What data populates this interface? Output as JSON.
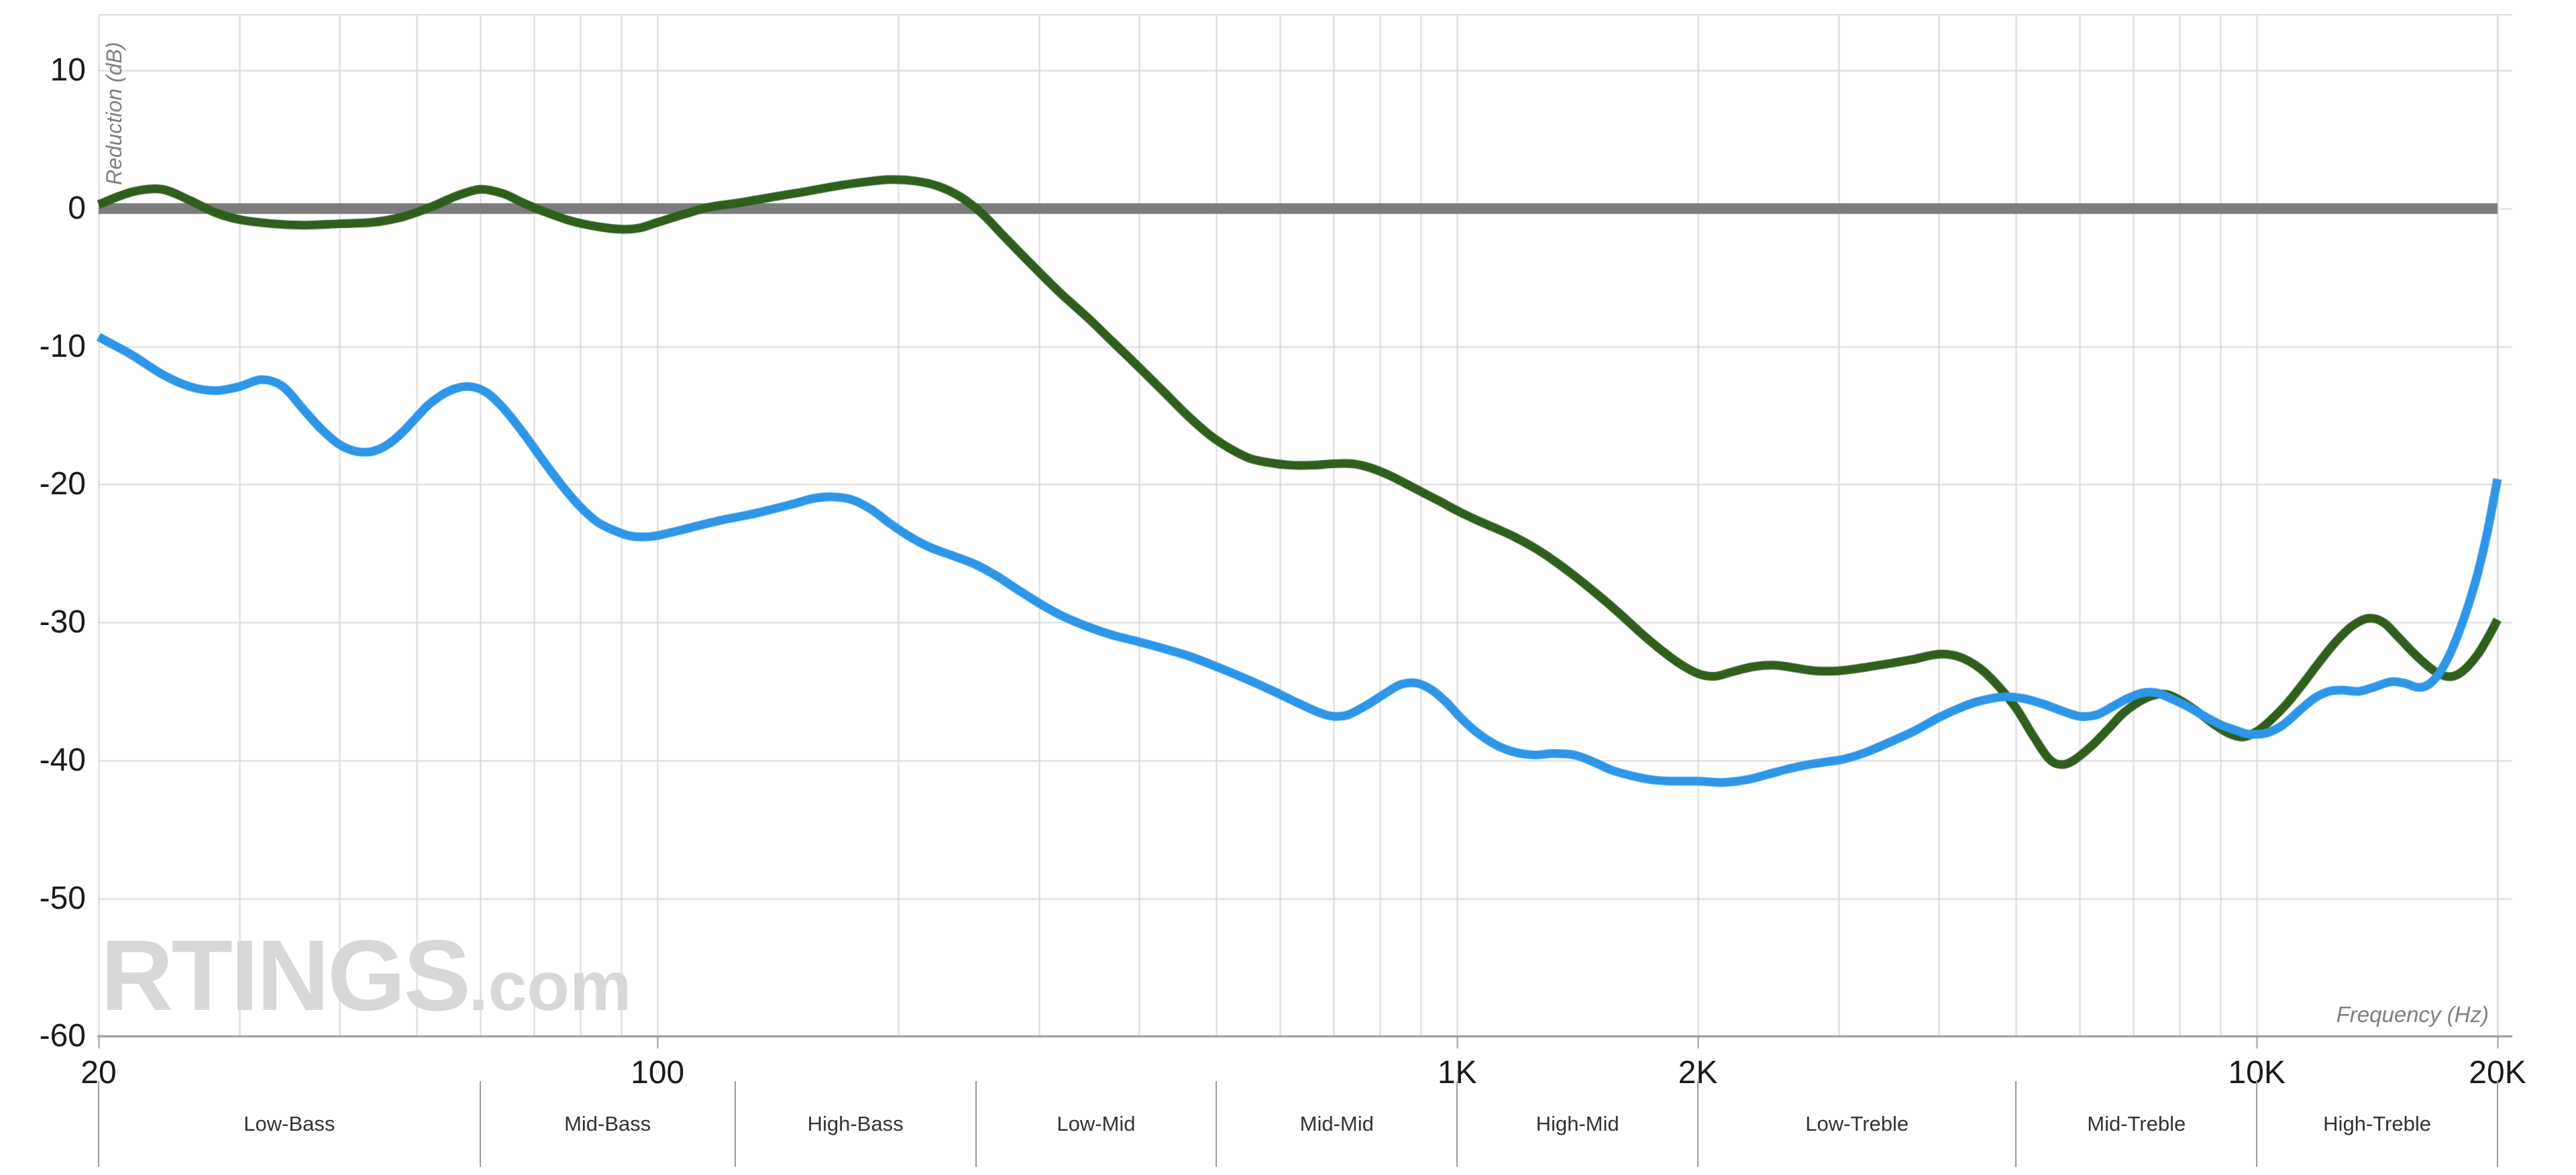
{
  "chart_data": {
    "type": "line",
    "title": "",
    "xlabel": "Frequency (Hz)",
    "ylabel": "Reduction (dB)",
    "x_scale": "log",
    "xlim": [
      20,
      20000
    ],
    "ylim": [
      -60,
      14
    ],
    "grid": {
      "color": "#d8d8d8",
      "axis_color": "#999999",
      "on": true
    },
    "y_ticks": [
      {
        "v": 10,
        "label": "10"
      },
      {
        "v": 0,
        "label": "0"
      },
      {
        "v": -10,
        "label": "-10"
      },
      {
        "v": -20,
        "label": "-20"
      },
      {
        "v": -30,
        "label": "-30"
      },
      {
        "v": -40,
        "label": "-40"
      },
      {
        "v": -50,
        "label": "-50"
      },
      {
        "v": -60,
        "label": "-60"
      }
    ],
    "x_ticks": [
      {
        "v": 20,
        "label": "20"
      },
      {
        "v": 100,
        "label": "100"
      },
      {
        "v": 1000,
        "label": "1K"
      },
      {
        "v": 2000,
        "label": "2K"
      },
      {
        "v": 10000,
        "label": "10K"
      },
      {
        "v": 20000,
        "label": "20K"
      }
    ],
    "bands": [
      {
        "label": "Low-Bass",
        "from": 20,
        "to": 60
      },
      {
        "label": "Mid-Bass",
        "from": 60,
        "to": 125
      },
      {
        "label": "High-Bass",
        "from": 125,
        "to": 250
      },
      {
        "label": "Low-Mid",
        "from": 250,
        "to": 500
      },
      {
        "label": "Mid-Mid",
        "from": 500,
        "to": 1000
      },
      {
        "label": "High-Mid",
        "from": 1000,
        "to": 2000
      },
      {
        "label": "Low-Treble",
        "from": 2000,
        "to": 5000
      },
      {
        "label": "Mid-Treble",
        "from": 5000,
        "to": 10000
      },
      {
        "label": "High-Treble",
        "from": 10000,
        "to": 20000
      }
    ],
    "series": [
      {
        "name": "zero-db-reference",
        "color": "#7d7d7d",
        "width": 16,
        "points": [
          [
            20,
            0
          ],
          [
            20000,
            0
          ]
        ]
      },
      {
        "name": "green-curve",
        "color": "#305e1c",
        "width": 13,
        "points": [
          [
            20,
            0.3
          ],
          [
            22,
            1.2
          ],
          [
            24,
            1.4
          ],
          [
            26,
            0.6
          ],
          [
            28,
            -0.3
          ],
          [
            30,
            -0.8
          ],
          [
            33,
            -1.1
          ],
          [
            36,
            -1.2
          ],
          [
            40,
            -1.1
          ],
          [
            44,
            -1.0
          ],
          [
            48,
            -0.6
          ],
          [
            52,
            0.1
          ],
          [
            56,
            0.9
          ],
          [
            60,
            1.4
          ],
          [
            64,
            1.1
          ],
          [
            68,
            0.4
          ],
          [
            72,
            -0.2
          ],
          [
            78,
            -0.9
          ],
          [
            84,
            -1.3
          ],
          [
            90,
            -1.5
          ],
          [
            95,
            -1.4
          ],
          [
            100,
            -1.0
          ],
          [
            108,
            -0.4
          ],
          [
            116,
            0.1
          ],
          [
            126,
            0.4
          ],
          [
            138,
            0.8
          ],
          [
            152,
            1.2
          ],
          [
            166,
            1.6
          ],
          [
            180,
            1.9
          ],
          [
            195,
            2.1
          ],
          [
            210,
            2.0
          ],
          [
            225,
            1.6
          ],
          [
            240,
            0.8
          ],
          [
            255,
            -0.4
          ],
          [
            270,
            -1.9
          ],
          [
            285,
            -3.3
          ],
          [
            300,
            -4.6
          ],
          [
            320,
            -6.2
          ],
          [
            345,
            -7.9
          ],
          [
            370,
            -9.6
          ],
          [
            400,
            -11.5
          ],
          [
            430,
            -13.3
          ],
          [
            460,
            -15.0
          ],
          [
            490,
            -16.4
          ],
          [
            520,
            -17.4
          ],
          [
            550,
            -18.1
          ],
          [
            580,
            -18.4
          ],
          [
            620,
            -18.6
          ],
          [
            660,
            -18.6
          ],
          [
            700,
            -18.5
          ],
          [
            740,
            -18.5
          ],
          [
            780,
            -18.8
          ],
          [
            820,
            -19.3
          ],
          [
            860,
            -19.9
          ],
          [
            900,
            -20.5
          ],
          [
            950,
            -21.2
          ],
          [
            1000,
            -21.9
          ],
          [
            1060,
            -22.6
          ],
          [
            1120,
            -23.2
          ],
          [
            1180,
            -23.8
          ],
          [
            1250,
            -24.6
          ],
          [
            1320,
            -25.5
          ],
          [
            1400,
            -26.6
          ],
          [
            1500,
            -28.0
          ],
          [
            1600,
            -29.4
          ],
          [
            1700,
            -30.8
          ],
          [
            1800,
            -32.0
          ],
          [
            1900,
            -33.0
          ],
          [
            2000,
            -33.7
          ],
          [
            2100,
            -33.9
          ],
          [
            2200,
            -33.6
          ],
          [
            2350,
            -33.2
          ],
          [
            2500,
            -33.1
          ],
          [
            2650,
            -33.3
          ],
          [
            2800,
            -33.5
          ],
          [
            3000,
            -33.5
          ],
          [
            3200,
            -33.3
          ],
          [
            3450,
            -33.0
          ],
          [
            3700,
            -32.7
          ],
          [
            4000,
            -32.3
          ],
          [
            4250,
            -32.5
          ],
          [
            4500,
            -33.3
          ],
          [
            4750,
            -34.6
          ],
          [
            5000,
            -36.2
          ],
          [
            5250,
            -38.2
          ],
          [
            5500,
            -39.9
          ],
          [
            5700,
            -40.3
          ],
          [
            5900,
            -40.0
          ],
          [
            6200,
            -39.0
          ],
          [
            6500,
            -37.8
          ],
          [
            6800,
            -36.6
          ],
          [
            7100,
            -35.8
          ],
          [
            7400,
            -35.3
          ],
          [
            7700,
            -35.2
          ],
          [
            8000,
            -35.6
          ],
          [
            8400,
            -36.4
          ],
          [
            8800,
            -37.3
          ],
          [
            9200,
            -38.0
          ],
          [
            9600,
            -38.3
          ],
          [
            10000,
            -37.9
          ],
          [
            10400,
            -37.1
          ],
          [
            10900,
            -35.9
          ],
          [
            11400,
            -34.5
          ],
          [
            12000,
            -32.8
          ],
          [
            12600,
            -31.3
          ],
          [
            13200,
            -30.2
          ],
          [
            13800,
            -29.7
          ],
          [
            14400,
            -30.0
          ],
          [
            15000,
            -31.0
          ],
          [
            15700,
            -32.2
          ],
          [
            16400,
            -33.2
          ],
          [
            17000,
            -33.8
          ],
          [
            17600,
            -33.9
          ],
          [
            18200,
            -33.4
          ],
          [
            18900,
            -32.3
          ],
          [
            19500,
            -31.0
          ],
          [
            20000,
            -29.8
          ]
        ]
      },
      {
        "name": "blue-curve",
        "color": "#2e96e8",
        "width": 13,
        "points": [
          [
            20,
            -9.3
          ],
          [
            22,
            -10.6
          ],
          [
            24,
            -12.0
          ],
          [
            26,
            -12.9
          ],
          [
            28,
            -13.2
          ],
          [
            30,
            -12.9
          ],
          [
            32,
            -12.4
          ],
          [
            34,
            -12.9
          ],
          [
            36,
            -14.5
          ],
          [
            38,
            -16.0
          ],
          [
            40,
            -17.1
          ],
          [
            42,
            -17.6
          ],
          [
            44,
            -17.6
          ],
          [
            46,
            -17.1
          ],
          [
            48,
            -16.2
          ],
          [
            50,
            -15.1
          ],
          [
            52,
            -14.1
          ],
          [
            55,
            -13.2
          ],
          [
            58,
            -12.9
          ],
          [
            61,
            -13.3
          ],
          [
            64,
            -14.4
          ],
          [
            68,
            -16.3
          ],
          [
            72,
            -18.3
          ],
          [
            76,
            -20.1
          ],
          [
            80,
            -21.6
          ],
          [
            84,
            -22.7
          ],
          [
            88,
            -23.3
          ],
          [
            92,
            -23.7
          ],
          [
            96,
            -23.8
          ],
          [
            100,
            -23.7
          ],
          [
            107,
            -23.3
          ],
          [
            114,
            -22.9
          ],
          [
            122,
            -22.5
          ],
          [
            130,
            -22.2
          ],
          [
            139,
            -21.8
          ],
          [
            148,
            -21.4
          ],
          [
            157,
            -21.0
          ],
          [
            166,
            -20.9
          ],
          [
            175,
            -21.1
          ],
          [
            185,
            -21.8
          ],
          [
            195,
            -22.8
          ],
          [
            207,
            -23.8
          ],
          [
            220,
            -24.6
          ],
          [
            235,
            -25.2
          ],
          [
            250,
            -25.8
          ],
          [
            265,
            -26.6
          ],
          [
            280,
            -27.5
          ],
          [
            300,
            -28.6
          ],
          [
            320,
            -29.5
          ],
          [
            345,
            -30.3
          ],
          [
            370,
            -30.9
          ],
          [
            400,
            -31.4
          ],
          [
            430,
            -31.9
          ],
          [
            460,
            -32.4
          ],
          [
            490,
            -33.0
          ],
          [
            520,
            -33.6
          ],
          [
            550,
            -34.2
          ],
          [
            590,
            -35.0
          ],
          [
            630,
            -35.8
          ],
          [
            670,
            -36.5
          ],
          [
            700,
            -36.8
          ],
          [
            730,
            -36.7
          ],
          [
            770,
            -36.0
          ],
          [
            810,
            -35.2
          ],
          [
            850,
            -34.5
          ],
          [
            890,
            -34.4
          ],
          [
            930,
            -34.9
          ],
          [
            970,
            -35.8
          ],
          [
            1010,
            -36.9
          ],
          [
            1060,
            -38.0
          ],
          [
            1120,
            -38.9
          ],
          [
            1180,
            -39.4
          ],
          [
            1250,
            -39.6
          ],
          [
            1320,
            -39.5
          ],
          [
            1400,
            -39.6
          ],
          [
            1480,
            -40.1
          ],
          [
            1560,
            -40.7
          ],
          [
            1650,
            -41.1
          ],
          [
            1750,
            -41.4
          ],
          [
            1850,
            -41.5
          ],
          [
            2000,
            -41.5
          ],
          [
            2150,
            -41.6
          ],
          [
            2300,
            -41.4
          ],
          [
            2450,
            -41.0
          ],
          [
            2600,
            -40.6
          ],
          [
            2750,
            -40.3
          ],
          [
            2900,
            -40.1
          ],
          [
            3050,
            -39.9
          ],
          [
            3250,
            -39.4
          ],
          [
            3500,
            -38.6
          ],
          [
            3750,
            -37.8
          ],
          [
            4000,
            -36.9
          ],
          [
            4250,
            -36.2
          ],
          [
            4500,
            -35.7
          ],
          [
            4800,
            -35.4
          ],
          [
            5100,
            -35.5
          ],
          [
            5400,
            -35.9
          ],
          [
            5700,
            -36.4
          ],
          [
            6000,
            -36.8
          ],
          [
            6300,
            -36.7
          ],
          [
            6600,
            -36.1
          ],
          [
            6900,
            -35.5
          ],
          [
            7200,
            -35.1
          ],
          [
            7500,
            -35.1
          ],
          [
            7800,
            -35.5
          ],
          [
            8200,
            -36.1
          ],
          [
            8600,
            -36.8
          ],
          [
            9000,
            -37.4
          ],
          [
            9400,
            -37.8
          ],
          [
            9800,
            -38.1
          ],
          [
            10300,
            -38.0
          ],
          [
            10800,
            -37.4
          ],
          [
            11300,
            -36.4
          ],
          [
            11800,
            -35.5
          ],
          [
            12300,
            -35.0
          ],
          [
            12800,
            -34.9
          ],
          [
            13400,
            -35.0
          ],
          [
            14000,
            -34.7
          ],
          [
            14700,
            -34.3
          ],
          [
            15300,
            -34.4
          ],
          [
            15900,
            -34.7
          ],
          [
            16400,
            -34.5
          ],
          [
            16900,
            -33.7
          ],
          [
            17400,
            -32.4
          ],
          [
            17900,
            -30.7
          ],
          [
            18400,
            -28.7
          ],
          [
            18900,
            -26.4
          ],
          [
            19400,
            -23.6
          ],
          [
            20000,
            -19.6
          ]
        ]
      }
    ],
    "watermark": {
      "main": "RTINGS",
      "suffix": ".com",
      "color": "#d8d8d8"
    }
  }
}
